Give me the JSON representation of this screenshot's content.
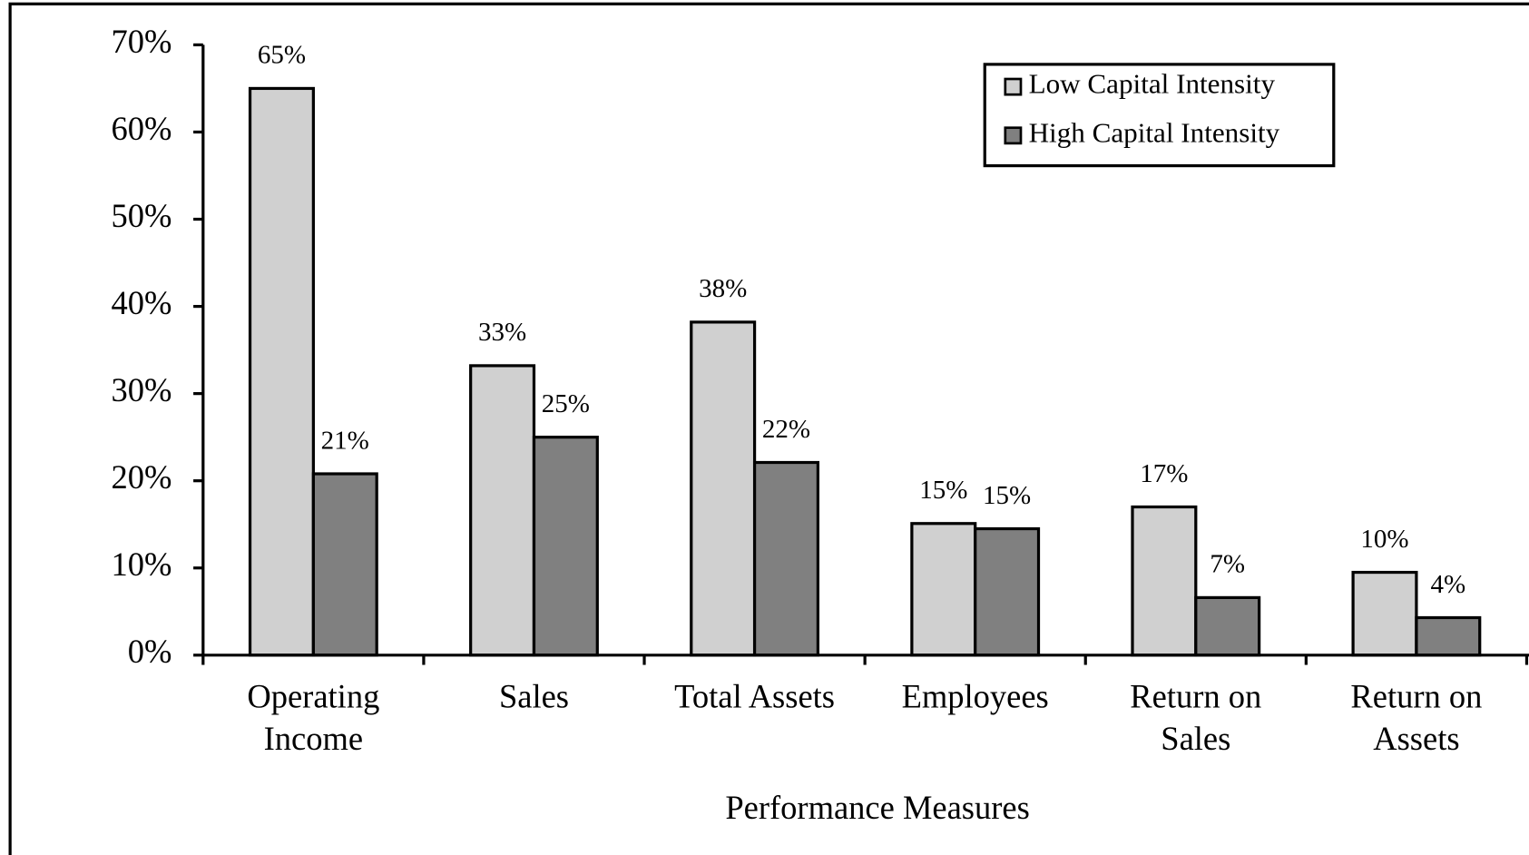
{
  "chart_data": {
    "type": "bar",
    "x_label": "Performance Measures",
    "categories": [
      [
        "Operating",
        "Income"
      ],
      [
        "Sales"
      ],
      [
        "Total Assets"
      ],
      [
        "Employees"
      ],
      [
        "Return on",
        "Sales"
      ],
      [
        "Return on",
        "Assets"
      ]
    ],
    "series": [
      {
        "name": "Low Capital Intensity",
        "color": "#d0d0d0",
        "values": [
          65,
          33.2,
          38.2,
          15.1,
          17,
          9.5
        ],
        "value_labels": [
          "65%",
          "33%",
          "38%",
          "15%",
          "17%",
          "10%"
        ]
      },
      {
        "name": "High Capital Intensity",
        "color": "#808080",
        "values": [
          20.8,
          25,
          22.1,
          14.5,
          6.6,
          4.3
        ],
        "value_labels": [
          "21%",
          "25%",
          "22%",
          "15%",
          "7%",
          "4%"
        ]
      }
    ],
    "ylim": [
      0,
      70
    ],
    "yticks": [
      {
        "value": 0,
        "label": "0%"
      },
      {
        "value": 10,
        "label": "10%"
      },
      {
        "value": 20,
        "label": "20%"
      },
      {
        "value": 30,
        "label": "30%"
      },
      {
        "value": 40,
        "label": "40%"
      },
      {
        "value": 50,
        "label": "50%"
      },
      {
        "value": 60,
        "label": "60%"
      },
      {
        "value": 70,
        "label": "70%"
      }
    ],
    "legend": "upper right"
  }
}
